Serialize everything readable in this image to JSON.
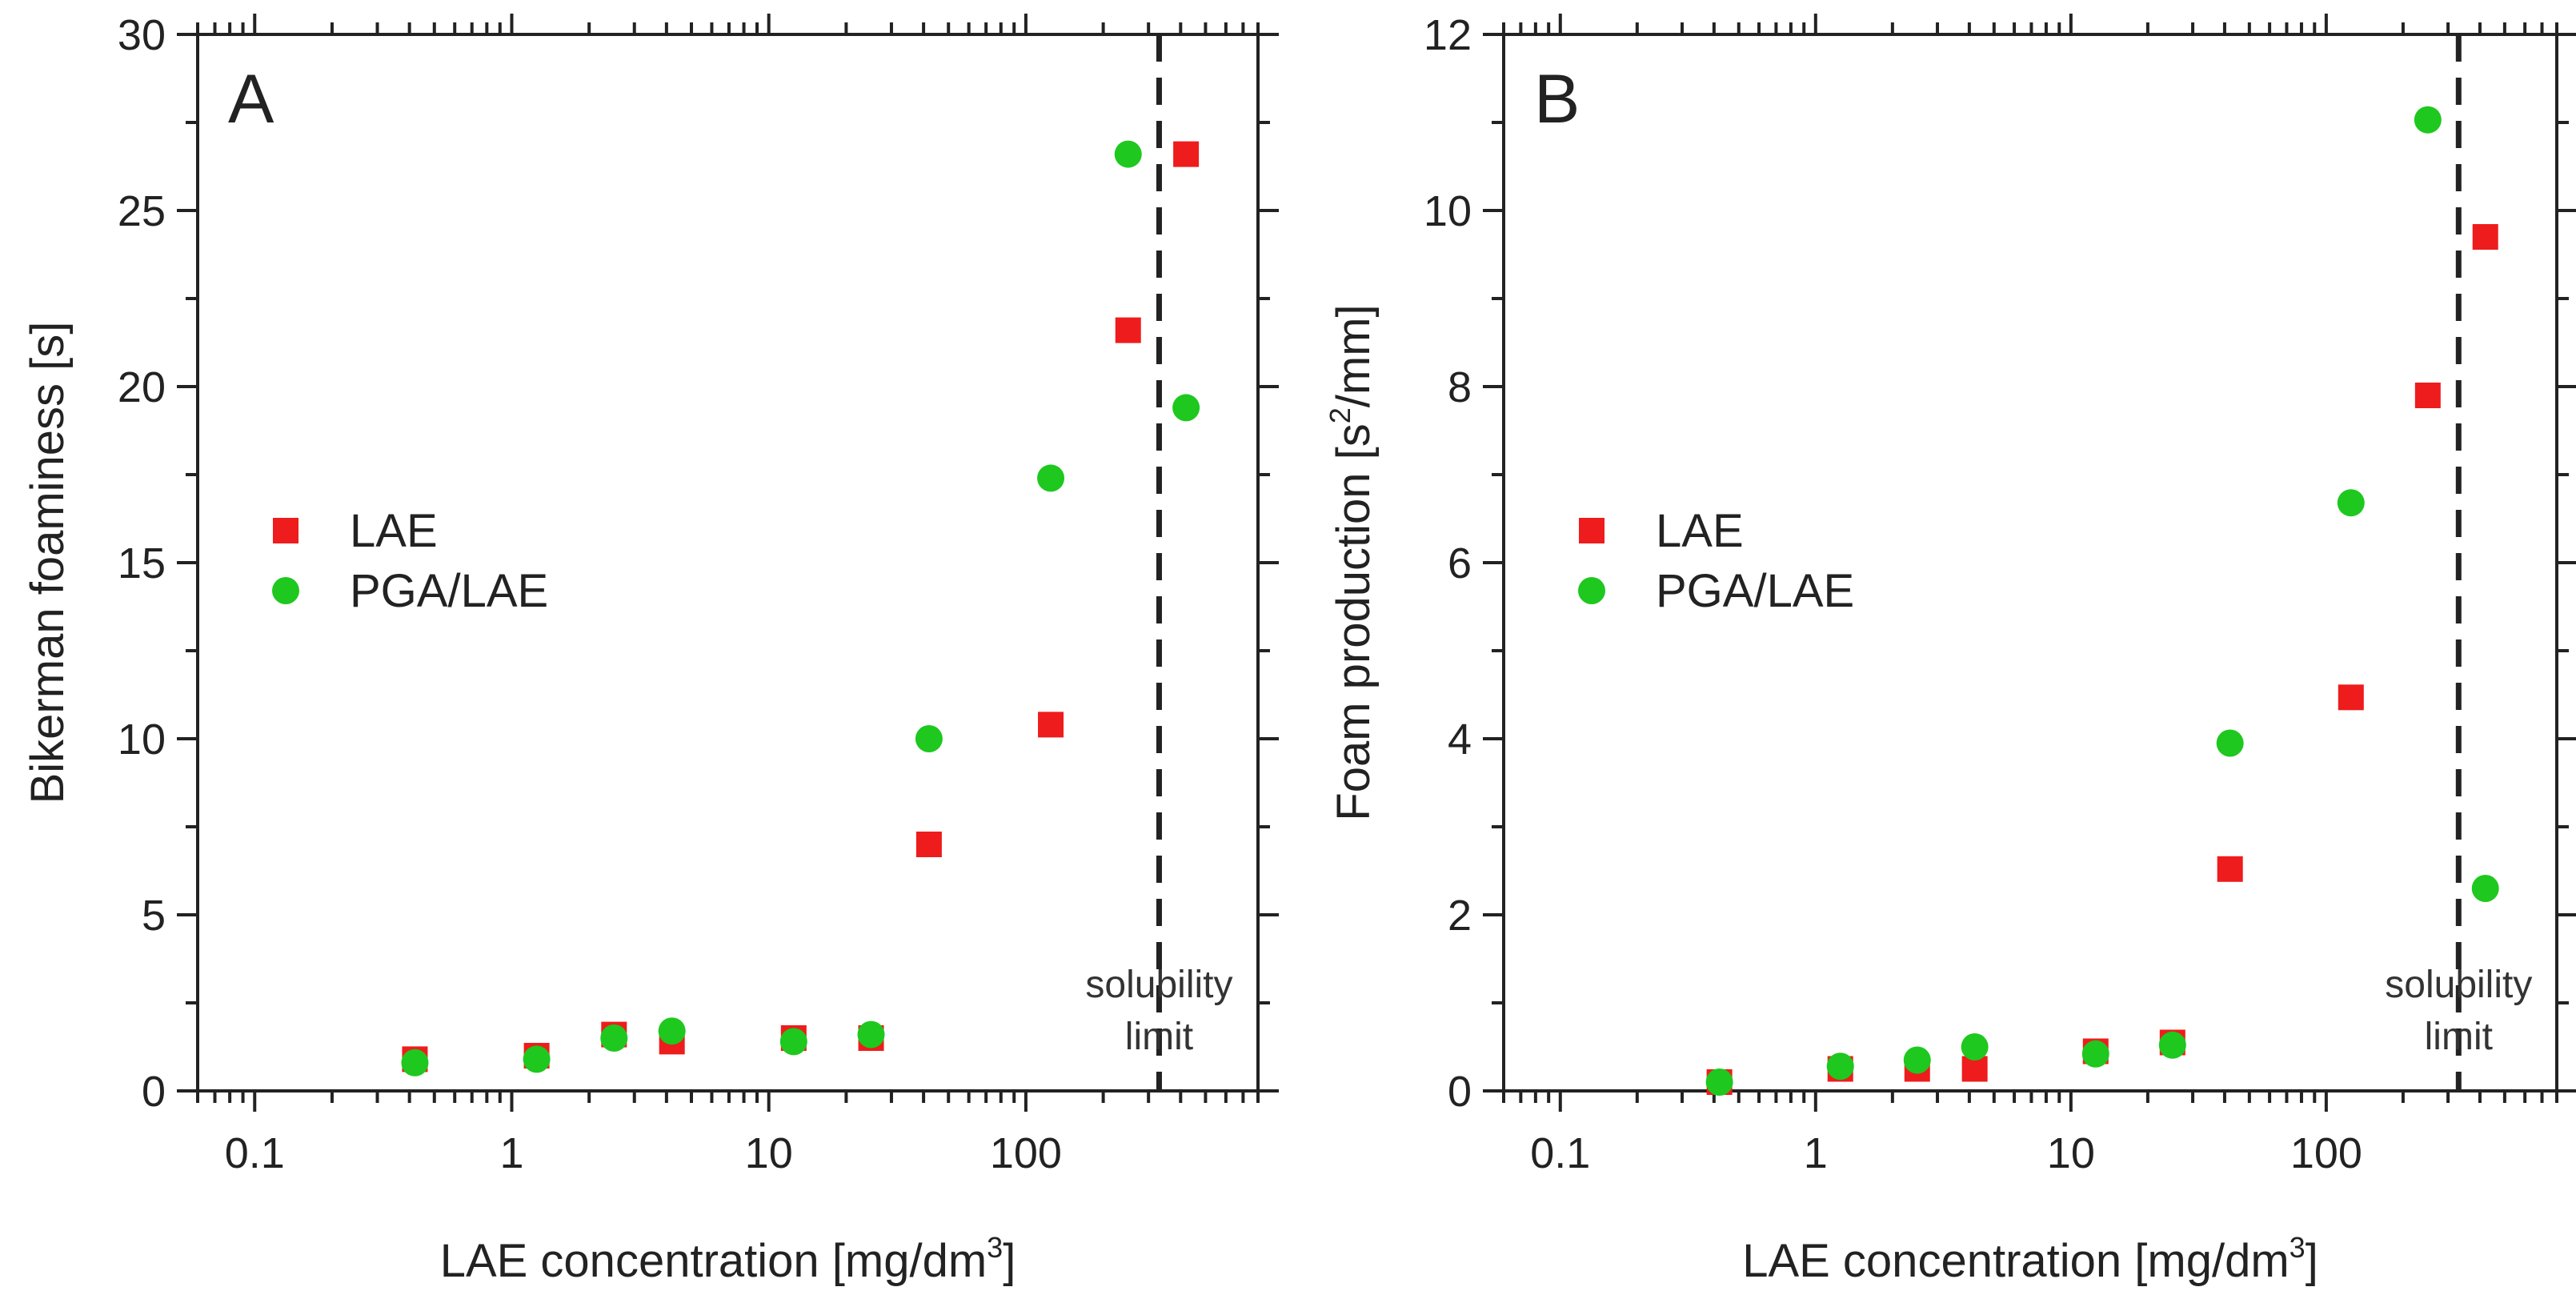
{
  "colors": {
    "lae": "#ee1c1c",
    "pga_lae": "#1ec81e",
    "axis": "#222222",
    "background": "#ffffff"
  },
  "chart_data": [
    {
      "type": "scatter",
      "panel_label": "A",
      "xlabel": "LAE concentration [mg/dm",
      "xlabel_sup": "3",
      "xlabel_end": "]",
      "ylabel": "Bikerman foaminess [s]",
      "ylabel_sup": "",
      "ylabel_end": "",
      "xscale": "log",
      "xlim": [
        0.06,
        800
      ],
      "ylim": [
        0,
        30
      ],
      "xticks": [
        0.1,
        1,
        10,
        100
      ],
      "xtick_labels": [
        "0.1",
        "1",
        "10",
        "100"
      ],
      "yticks": [
        0,
        5,
        10,
        15,
        20,
        25,
        30
      ],
      "ytick_labels": [
        "0",
        "5",
        "10",
        "15",
        "20",
        "25",
        "30"
      ],
      "yminor_step": 2.5,
      "grid": false,
      "legend_position": "middle-left",
      "vline": {
        "x": 330,
        "style": "dashed",
        "label_line1": "solubility",
        "label_line2": "limit"
      },
      "series": [
        {
          "name": "LAE",
          "marker": "square",
          "points": [
            [
              0.42,
              0.9
            ],
            [
              1.25,
              1.0
            ],
            [
              2.5,
              1.6
            ],
            [
              4.2,
              1.4
            ],
            [
              12.5,
              1.5
            ],
            [
              25,
              1.5
            ],
            [
              42,
              7.0
            ],
            [
              125,
              10.4
            ],
            [
              250,
              21.6
            ],
            [
              420,
              26.6
            ]
          ]
        },
        {
          "name": "PGA/LAE",
          "marker": "circle",
          "points": [
            [
              0.42,
              0.8
            ],
            [
              1.25,
              0.9
            ],
            [
              2.5,
              1.5
            ],
            [
              4.2,
              1.7
            ],
            [
              12.5,
              1.4
            ],
            [
              25,
              1.6
            ],
            [
              42,
              10.0
            ],
            [
              125,
              17.4
            ],
            [
              250,
              26.6
            ],
            [
              420,
              19.4
            ]
          ]
        }
      ]
    },
    {
      "type": "scatter",
      "panel_label": "B",
      "xlabel": "LAE concentration [mg/dm",
      "xlabel_sup": "3",
      "xlabel_end": "]",
      "ylabel": "Foam production [s",
      "ylabel_sup": "2",
      "ylabel_end": "/mm]",
      "xscale": "log",
      "xlim": [
        0.06,
        800
      ],
      "ylim": [
        0,
        12
      ],
      "xticks": [
        0.1,
        1,
        10,
        100
      ],
      "xtick_labels": [
        "0.1",
        "1",
        "10",
        "100"
      ],
      "yticks": [
        0,
        2,
        4,
        6,
        8,
        10,
        12
      ],
      "ytick_labels": [
        "0",
        "2",
        "4",
        "6",
        "8",
        "10",
        "12"
      ],
      "yminor_step": 1,
      "grid": false,
      "legend_position": "middle-left",
      "vline": {
        "x": 330,
        "style": "dashed",
        "label_line1": "solubility",
        "label_line2": "limit"
      },
      "series": [
        {
          "name": "LAE",
          "marker": "square",
          "points": [
            [
              0.42,
              0.1
            ],
            [
              1.25,
              0.25
            ],
            [
              2.5,
              0.25
            ],
            [
              4.2,
              0.25
            ],
            [
              12.5,
              0.45
            ],
            [
              25,
              0.55
            ],
            [
              42,
              2.52
            ],
            [
              125,
              4.47
            ],
            [
              250,
              7.9
            ],
            [
              420,
              9.7
            ]
          ]
        },
        {
          "name": "PGA/LAE",
          "marker": "circle",
          "points": [
            [
              0.42,
              0.1
            ],
            [
              1.25,
              0.28
            ],
            [
              2.5,
              0.35
            ],
            [
              4.2,
              0.5
            ],
            [
              12.5,
              0.42
            ],
            [
              25,
              0.52
            ],
            [
              42,
              3.95
            ],
            [
              125,
              6.68
            ],
            [
              250,
              11.03
            ],
            [
              420,
              2.3
            ]
          ]
        }
      ]
    }
  ]
}
